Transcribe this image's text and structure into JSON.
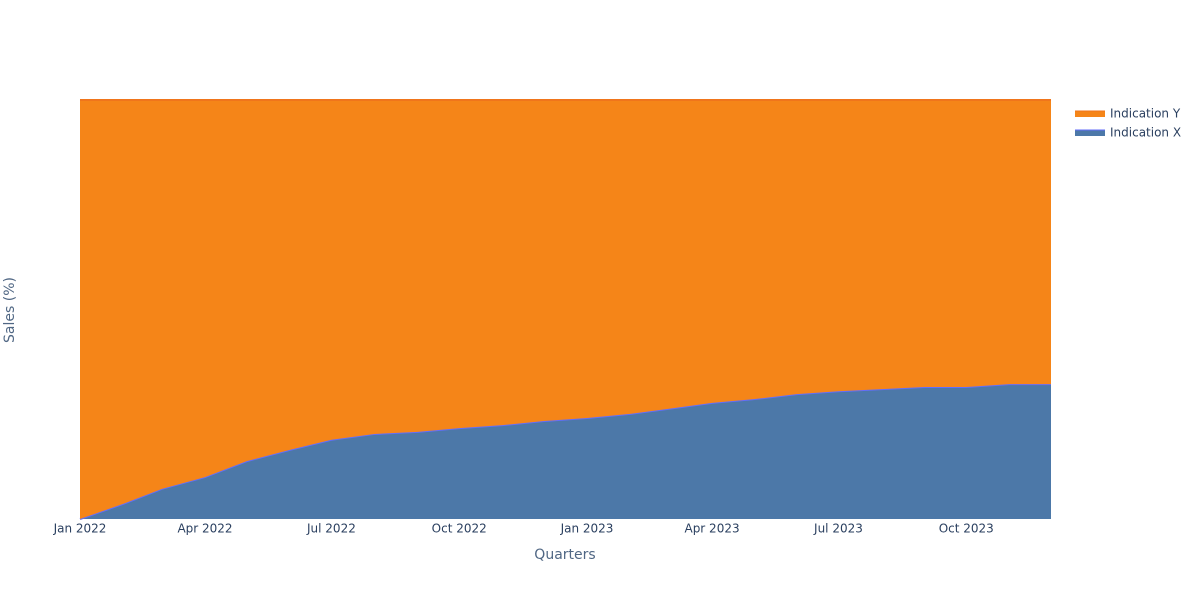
{
  "chart_data": {
    "type": "area",
    "stacked": true,
    "x_label": "Quarters",
    "y_label": "Sales (%)",
    "x": [
      "2022-01",
      "2022-02",
      "2022-03",
      "2022-04",
      "2022-05",
      "2022-06",
      "2022-07",
      "2022-08",
      "2022-09",
      "2022-10",
      "2022-11",
      "2022-12",
      "2023-01",
      "2023-02",
      "2023-03",
      "2023-04",
      "2023-05",
      "2023-06",
      "2023-07",
      "2023-08",
      "2023-09",
      "2023-10",
      "2023-11",
      "2023-12"
    ],
    "series": [
      {
        "name": "Indication X",
        "color": "#4c78a8",
        "line_color": "#636efa",
        "values": [
          0,
          3.6,
          7.2,
          10.0,
          13.8,
          16.5,
          18.9,
          20.3,
          20.8,
          21.7,
          22.4,
          23.4,
          24.1,
          25.1,
          26.3,
          27.7,
          28.6,
          29.8,
          30.5,
          31.0,
          31.5,
          31.5,
          32.2,
          32.2
        ]
      },
      {
        "name": "Indication Y",
        "color": "#f58518",
        "line_color": "#f0751b",
        "values": [
          100,
          96.4,
          92.8,
          90.0,
          86.2,
          83.5,
          81.1,
          79.7,
          79.2,
          78.3,
          77.6,
          76.6,
          75.9,
          74.9,
          73.7,
          72.3,
          71.4,
          70.2,
          69.5,
          69.0,
          68.5,
          68.5,
          67.8,
          67.8
        ]
      }
    ],
    "xticks": [
      {
        "value": "2022-01",
        "label": "Jan 2022"
      },
      {
        "value": "2022-04",
        "label": "Apr 2022"
      },
      {
        "value": "2022-07",
        "label": "Jul 2022"
      },
      {
        "value": "2022-10",
        "label": "Oct 2022"
      },
      {
        "value": "2023-01",
        "label": "Jan 2023"
      },
      {
        "value": "2023-04",
        "label": "Apr 2023"
      },
      {
        "value": "2023-07",
        "label": "Jul 2023"
      },
      {
        "value": "2023-10",
        "label": "Oct 2023"
      }
    ],
    "ylim": [
      0,
      100
    ],
    "legend": "top-right"
  }
}
